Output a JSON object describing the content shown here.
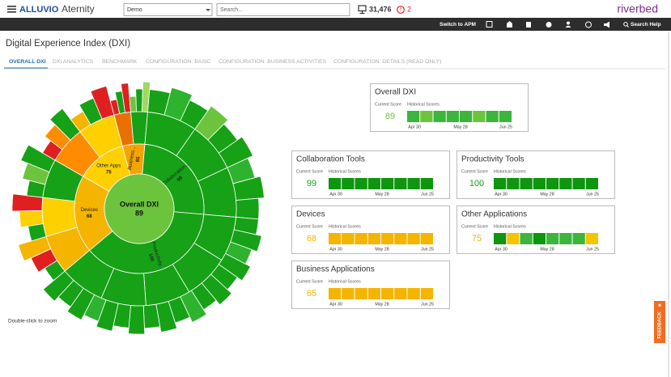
{
  "header": {
    "brand": "ALLUVIO",
    "product": "Aternity",
    "environment": "Demo",
    "search_placeholder": "Search...",
    "device_count": "31,476",
    "alert_count": "2",
    "vendor": "riverbed"
  },
  "toolbar": {
    "switch": "Switch to APM",
    "search_help": "Search Help"
  },
  "page": {
    "title": "Digital Experience Index (DXI)",
    "tabs": [
      "OVERALL DXI",
      "DXI ANALYTICS",
      "BENCHMARK",
      "CONFIGURATION: BASIC",
      "CONFIGURATION: BUSINESS ACTIVITIES",
      "CONFIGURATION: DETAILS (READ ONLY)"
    ],
    "zoom_hint": "Double-click to zoom",
    "feedback": "FEEDBACK"
  },
  "sunburst": {
    "center": {
      "label": "Overall DXI",
      "score": 89,
      "color": "#6cc43c"
    },
    "segments": [
      {
        "label": "Devices",
        "score": 68,
        "color": "#f5b400"
      },
      {
        "label": "Other Apps",
        "score": 75,
        "color": "#ffd000"
      },
      {
        "label": "Business...",
        "score": 65,
        "color": "#f5a300"
      },
      {
        "label": "Collaboration...",
        "score": 99,
        "color": "#16a116"
      },
      {
        "label": "Productivity...",
        "score": 100,
        "color": "#16a116"
      }
    ]
  },
  "cards": [
    {
      "title": "Overall DXI",
      "current_label": "Current Score",
      "history_label": "Historical Scores",
      "score": 89,
      "score_color": "#6cc43c",
      "history_colors": [
        "#3cb53c",
        "#6cc43c",
        "#3cb53c",
        "#3cb53c",
        "#3cb53c",
        "#6cc43c",
        "#3cb53c",
        "#3cb53c"
      ],
      "dates": [
        "Apr 30",
        "May 28",
        "Jun 25"
      ]
    },
    {
      "title": "Collaboration Tools",
      "current_label": "Current Score",
      "history_label": "Historical Scores",
      "score": 99,
      "score_color": "#16a116",
      "history_colors": [
        "#0e960e",
        "#0e960e",
        "#0e960e",
        "#0e960e",
        "#0e960e",
        "#0e960e",
        "#0e960e",
        "#0e960e"
      ],
      "dates": [
        "Apr 30",
        "May 28",
        "Jun 25"
      ]
    },
    {
      "title": "Productivity Tools",
      "current_label": "Current Score",
      "history_label": "Historical Scores",
      "score": 100,
      "score_color": "#16a116",
      "history_colors": [
        "#0e960e",
        "#0e960e",
        "#0e960e",
        "#0e960e",
        "#0e960e",
        "#0e960e",
        "#0e960e",
        "#0e960e"
      ],
      "dates": [
        "Apr 30",
        "May 28",
        "Jun 25"
      ]
    },
    {
      "title": "Devices",
      "current_label": "Current Score",
      "history_label": "Historical Scores",
      "score": 68,
      "score_color": "#f5b400",
      "history_colors": [
        "#f5b400",
        "#f5b400",
        "#f5b400",
        "#f5b400",
        "#f5b400",
        "#f5b400",
        "#f5b400",
        "#f5b400"
      ],
      "dates": [
        "Apr 30",
        "May 28",
        "Jun 25"
      ]
    },
    {
      "title": "Other Applications",
      "current_label": "Current Score",
      "history_label": "Historical Scores",
      "score": 75,
      "score_color": "#e6b800",
      "history_colors": [
        "#0e960e",
        "#f5c400",
        "#3cb53c",
        "#0e960e",
        "#3cb53c",
        "#3cb53c",
        "#3cb53c",
        "#f5c400"
      ],
      "dates": [
        "Apr 30",
        "May 28",
        "Jun 25"
      ]
    },
    {
      "title": "Business Applications",
      "current_label": "Current Score",
      "history_label": "Historical Scores",
      "score": 65,
      "score_color": "#f5b400",
      "history_colors": [
        "#f5b400",
        "#f5b400",
        "#f5b400",
        "#f5b400",
        "#f5b400",
        "#f5b400",
        "#f5b400",
        "#f5b400"
      ],
      "dates": [
        "Apr 30",
        "May 28",
        "Jun 25"
      ]
    }
  ]
}
